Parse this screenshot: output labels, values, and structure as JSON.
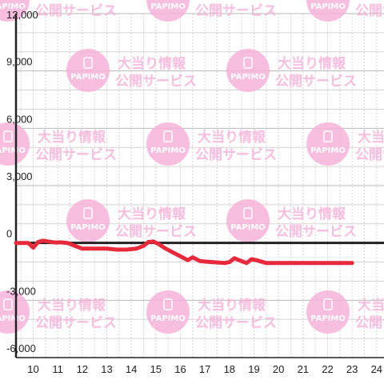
{
  "colors": {
    "series": "#e8283b",
    "axis": "#222222",
    "grid_major": "#b8b8b8",
    "grid_minor": "#d4d4d4",
    "watermark": "#f7b3da"
  },
  "watermark": {
    "brand": "PAPIMO",
    "line1": "大当り情報",
    "line2": "公開サービス"
  },
  "chart_data": {
    "type": "line",
    "title": "",
    "xlabel": "",
    "ylabel": "",
    "xlim": [
      9.3,
      24.3
    ],
    "ylim": [
      -6000,
      12000
    ],
    "x_ticks": [
      10,
      11,
      12,
      13,
      14,
      15,
      16,
      17,
      18,
      19,
      20,
      21,
      22,
      23,
      24
    ],
    "y_ticks": [
      -6000,
      -3000,
      0,
      3000,
      6000,
      9000,
      12000
    ],
    "y_tick_labels": [
      "-6,000",
      "-3,000",
      "0",
      "3,000",
      "6,000",
      "9,000",
      "12,000"
    ],
    "grid": true,
    "series": [
      {
        "name": "",
        "x": [
          9.3,
          9.8,
          10.0,
          10.2,
          10.4,
          10.6,
          10.9,
          11.1,
          11.4,
          11.7,
          12.0,
          12.5,
          13.0,
          13.4,
          13.8,
          14.2,
          14.5,
          14.7,
          14.9,
          15.1,
          15.4,
          15.7,
          16.0,
          16.3,
          16.5,
          16.8,
          17.3,
          17.8,
          18.0,
          18.2,
          18.5,
          18.7,
          18.9,
          19.1,
          19.5,
          20.0,
          20.5,
          21.0,
          21.5,
          22.0,
          22.5,
          23.0
        ],
        "y": [
          0,
          0,
          -250,
          50,
          120,
          80,
          20,
          30,
          0,
          -150,
          -300,
          -300,
          -300,
          -350,
          -350,
          -300,
          -150,
          50,
          80,
          -50,
          -300,
          -500,
          -700,
          -900,
          -750,
          -950,
          -1000,
          -1050,
          -1000,
          -800,
          -950,
          -1050,
          -850,
          -900,
          -1050,
          -1050,
          -1050,
          -1050,
          -1050,
          -1050,
          -1050,
          -1050
        ]
      }
    ]
  }
}
